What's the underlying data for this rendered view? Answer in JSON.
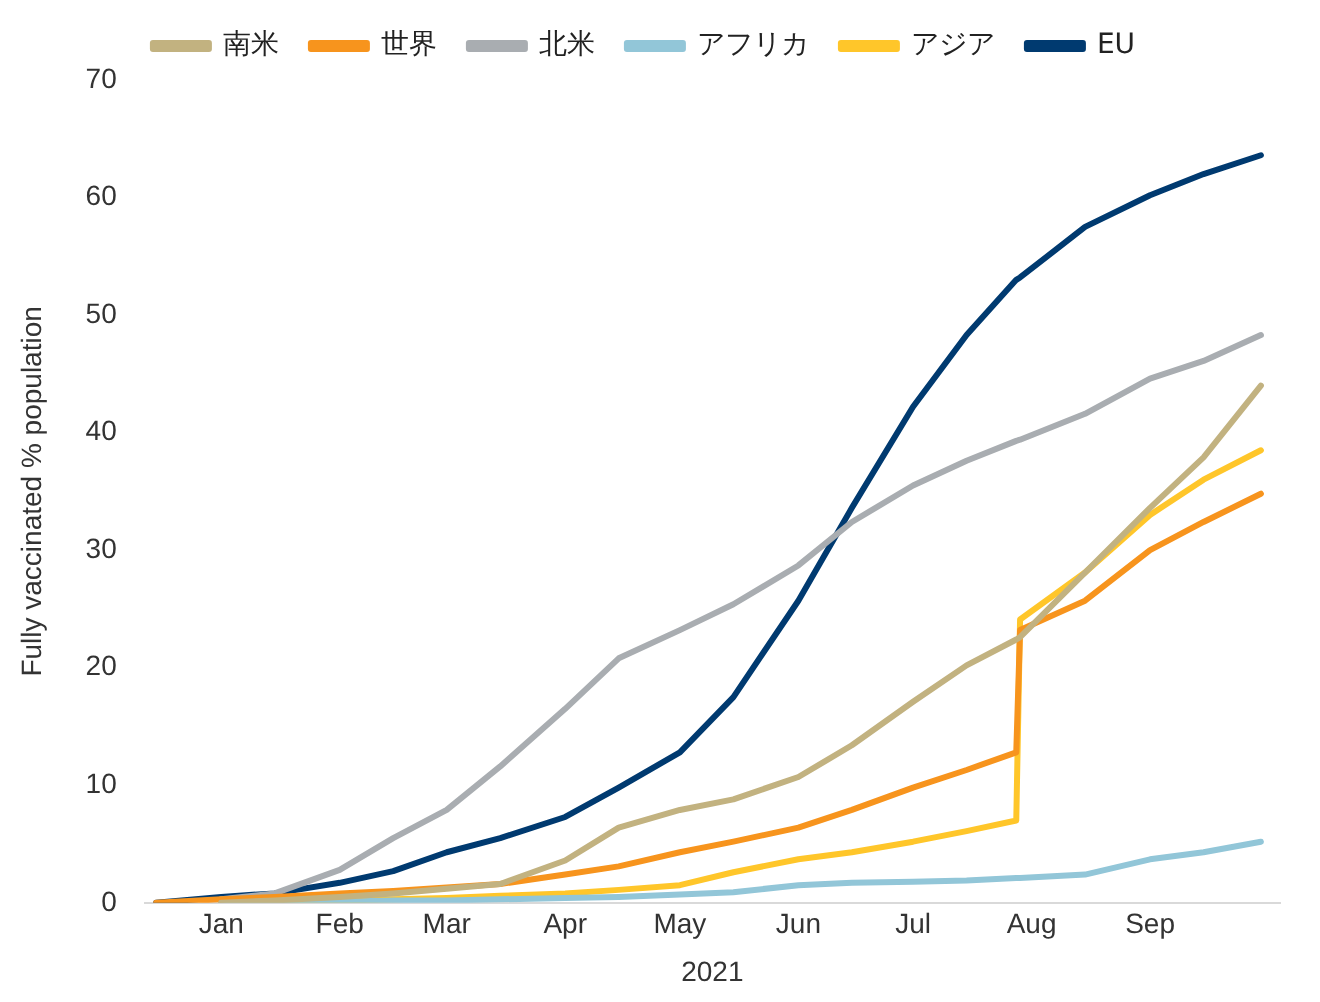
{
  "chart_data": {
    "type": "line",
    "xlabel": "2021",
    "ylabel": "Fully vaccinated % population",
    "x": [
      "2020-12-15",
      "2021-01-01",
      "2021-01-15",
      "2021-02-01",
      "2021-02-15",
      "2021-03-01",
      "2021-03-15",
      "2021-04-01",
      "2021-04-15",
      "2021-05-01",
      "2021-05-15",
      "2021-06-01",
      "2021-06-15",
      "2021-07-01",
      "2021-07-15",
      "2021-07-28",
      "2021-07-29",
      "2021-08-15",
      "2021-09-01",
      "2021-09-15",
      "2021-09-30"
    ],
    "series": [
      {
        "name": "南米",
        "color": "#c2b280",
        "values": [
          null,
          0,
          0.2,
          0.5,
          0.8,
          1.2,
          1.6,
          3.6,
          6.4,
          7.9,
          8.8,
          10.7,
          13.4,
          17.1,
          20.2,
          22.4,
          22.6,
          28.1,
          33.6,
          37.9,
          44
        ]
      },
      {
        "name": "世界",
        "color": "#f7941d",
        "values": [
          0,
          0.3,
          0.5,
          0.8,
          1,
          1.3,
          1.6,
          2.4,
          3.1,
          4.3,
          5.2,
          6.4,
          7.9,
          9.8,
          11.3,
          12.8,
          23.2,
          25.7,
          30,
          32.4,
          34.8
        ]
      },
      {
        "name": "北米",
        "color": "#a9adb1",
        "values": [
          null,
          0.3,
          0.8,
          2.8,
          5.5,
          7.9,
          11.6,
          16.5,
          20.8,
          23.2,
          25.4,
          28.7,
          32.4,
          35.5,
          37.6,
          39.3,
          39.4,
          41.6,
          44.6,
          46.1,
          48.3
        ]
      },
      {
        "name": "アフリカ",
        "color": "#92c6d8",
        "values": [
          null,
          0,
          0.1,
          0.1,
          0.2,
          0.2,
          0.3,
          0.4,
          0.5,
          0.7,
          0.9,
          1.5,
          1.7,
          1.8,
          1.9,
          2.1,
          2.1,
          2.4,
          3.7,
          4.3,
          5.2
        ]
      },
      {
        "name": "アジア",
        "color": "#ffc62a",
        "values": [
          null,
          0,
          0.1,
          0.2,
          0.3,
          0.4,
          0.6,
          0.8,
          1.1,
          1.5,
          2.6,
          3.7,
          4.3,
          5.2,
          6.1,
          7,
          24.1,
          28.1,
          33,
          36,
          38.5
        ]
      },
      {
        "name": "EU",
        "color": "#003a70",
        "values": [
          0,
          0.5,
          0.8,
          1.7,
          2.7,
          4.3,
          5.5,
          7.3,
          9.8,
          12.8,
          17.5,
          25.7,
          33.6,
          42.2,
          48.3,
          53,
          53.2,
          57.5,
          60.2,
          62,
          63.6
        ]
      }
    ],
    "xlim": [
      "2020-12-12",
      "2021-10-05"
    ],
    "xticks": [
      {
        "value": "2021-01-01",
        "label": "Jan"
      },
      {
        "value": "2021-02-01",
        "label": "Feb"
      },
      {
        "value": "2021-03-01",
        "label": "Mar"
      },
      {
        "value": "2021-04-01",
        "label": "Apr"
      },
      {
        "value": "2021-05-01",
        "label": "May"
      },
      {
        "value": "2021-06-01",
        "label": "Jun"
      },
      {
        "value": "2021-07-01",
        "label": "Jul"
      },
      {
        "value": "2021-08-01",
        "label": "Aug"
      },
      {
        "value": "2021-09-01",
        "label": "Sep"
      }
    ],
    "ylim": [
      0,
      70
    ],
    "yticks": [
      0,
      10,
      20,
      30,
      40,
      50,
      60,
      70
    ],
    "grid": false,
    "legend": "top",
    "marker": "none",
    "line_style": "solid"
  }
}
